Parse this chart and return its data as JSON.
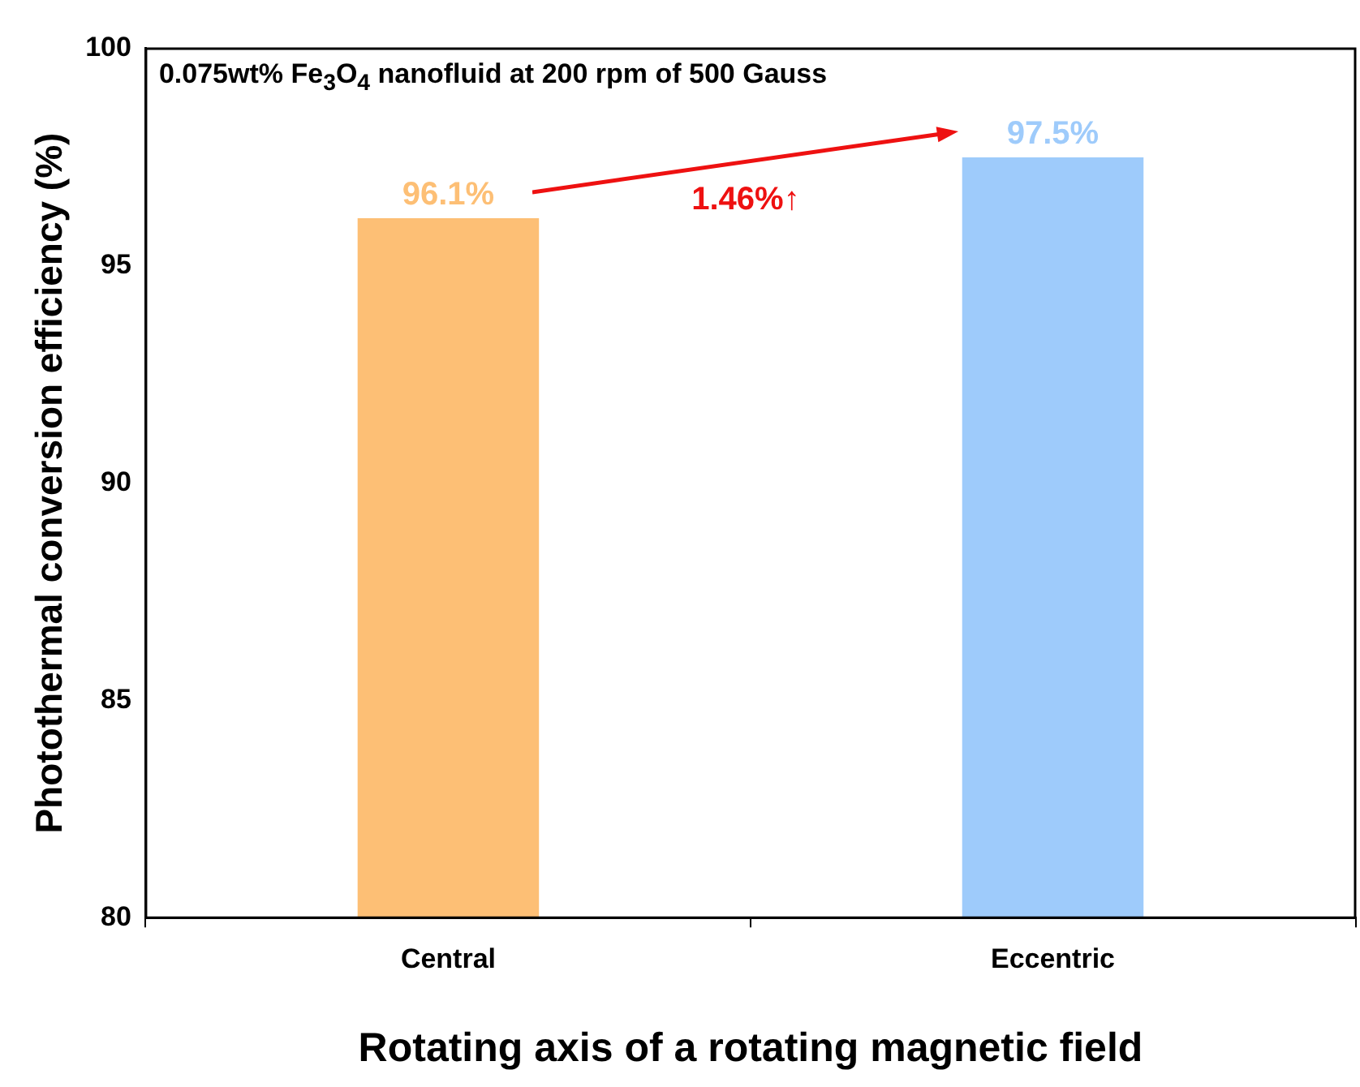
{
  "chart_data": {
    "type": "bar",
    "xlabel": "Rotating axis of a rotating magnetic field",
    "ylabel": "Photothermal conversion efficiency (%)",
    "categories": [
      "Central",
      "Eccentric"
    ],
    "values": [
      96.1,
      97.5
    ],
    "colors": [
      "#fdbf75",
      "#9ecbfb"
    ],
    "value_labels": [
      "96.1%",
      "97.5%"
    ],
    "ylim": [
      80,
      100
    ],
    "yticks": [
      80,
      85,
      90,
      95,
      100
    ],
    "annotations": [
      "0.075wt% Fe$_{3}$O$_{4}$ nanofluid at 200 rpm of 500 Gauss",
      "1.46%↑"
    ]
  }
}
